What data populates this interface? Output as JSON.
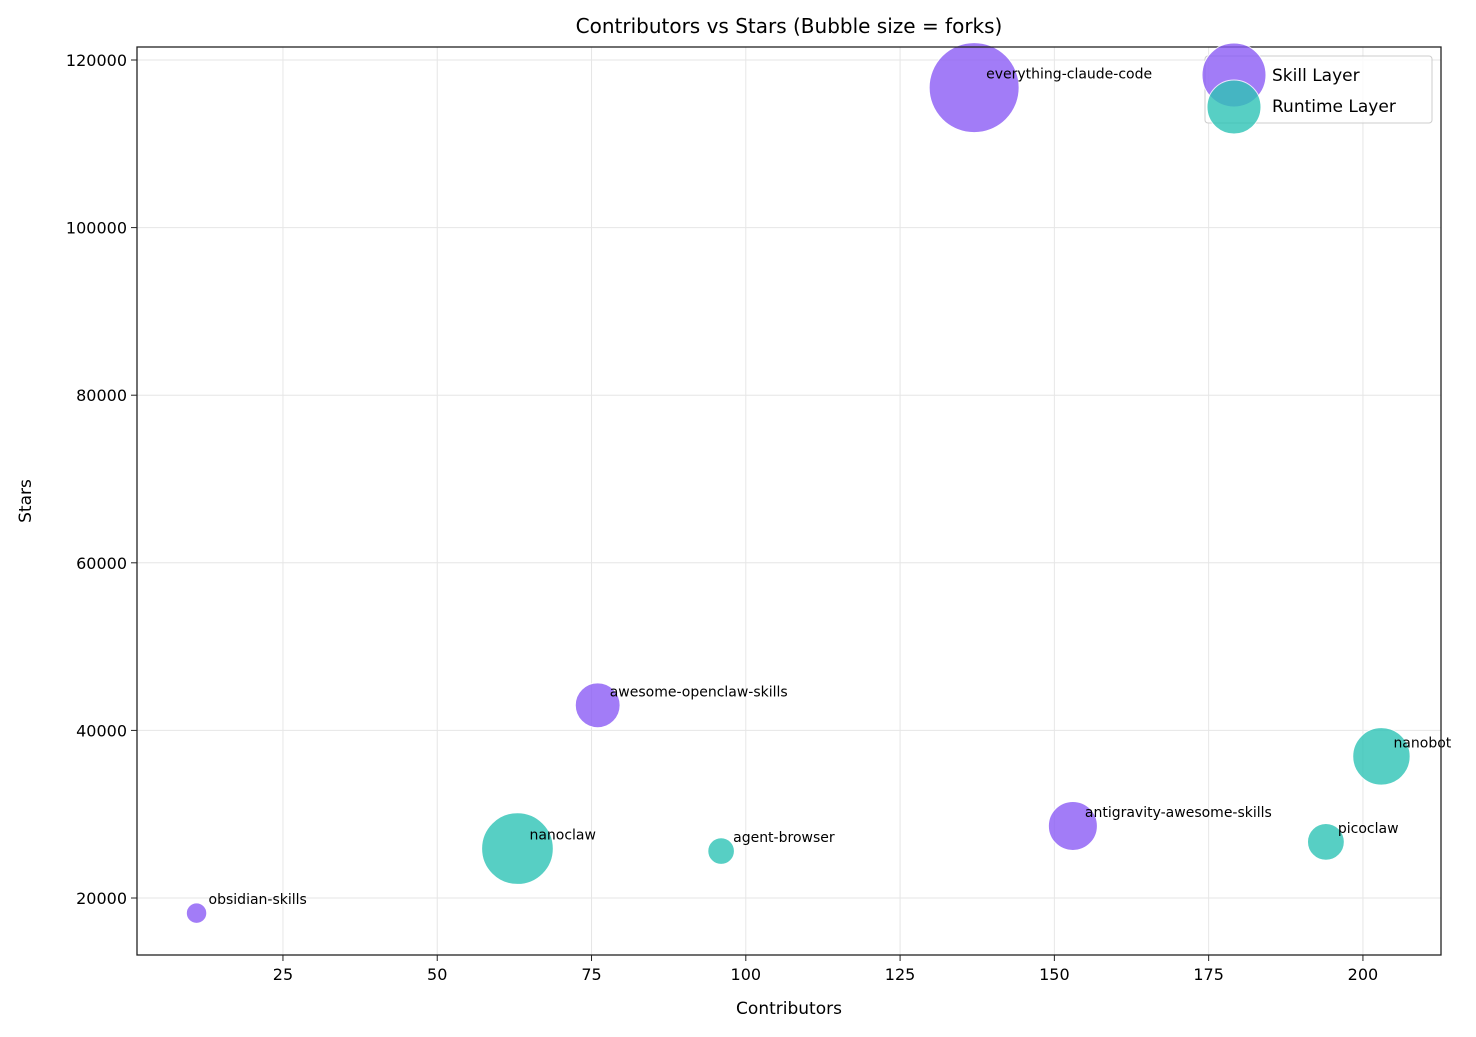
{
  "chart_data": {
    "type": "scatter",
    "title": "Contributors vs Stars (Bubble size = forks)",
    "xlabel": "Contributors",
    "ylabel": "Stars",
    "xlim": [
      1.35,
      212.65
    ],
    "ylim": [
      13200,
      121550
    ],
    "xticks": [
      25,
      50,
      75,
      100,
      125,
      150,
      175,
      200
    ],
    "yticks": [
      20000,
      40000,
      60000,
      80000,
      100000,
      120000
    ],
    "grid": true,
    "legend_placement": "top-right",
    "series": [
      {
        "name": "Skill Layer",
        "color": "#8B5CF6",
        "points": [
          {
            "label": "everything-claude-code",
            "x": 137,
            "y": 116700,
            "forks": 14500
          },
          {
            "label": "awesome-openclaw-skills",
            "x": 76,
            "y": 43000,
            "forks": 3600
          },
          {
            "label": "antigravity-awesome-skills",
            "x": 153,
            "y": 28600,
            "forks": 4300
          },
          {
            "label": "obsidian-skills",
            "x": 11,
            "y": 18200,
            "forks": 750
          }
        ]
      },
      {
        "name": "Runtime Layer",
        "color": "#2EC4B6",
        "points": [
          {
            "label": "nanoclaw",
            "x": 63,
            "y": 25900,
            "forks": 9200
          },
          {
            "label": "agent-browser",
            "x": 96,
            "y": 25600,
            "forks": 1270
          },
          {
            "label": "nanobot",
            "x": 203,
            "y": 36900,
            "forks": 5900
          },
          {
            "label": "picoclaw",
            "x": 194,
            "y": 26700,
            "forks": 2430
          }
        ]
      }
    ]
  }
}
